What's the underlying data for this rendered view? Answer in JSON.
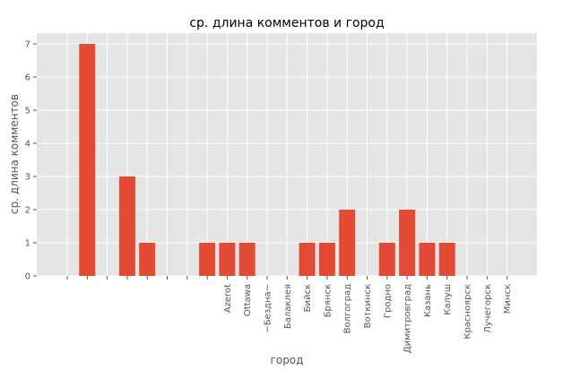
{
  "chart_data": {
    "type": "bar",
    "title": "ср. длина комментов и город",
    "xlabel": "город",
    "ylabel": "ср. длина комментов",
    "categories": [
      "",
      "",
      "",
      "",
      "",
      "",
      "",
      "",
      "Azerot",
      "Ottawa",
      "~Бездна~",
      "Балаклея",
      "Бийск",
      "Брянск",
      "Волгоград",
      "Воткинск",
      "Гродно",
      "Димитровград",
      "Казань",
      "Калуш",
      "Красноярск",
      "Лучегорск",
      "Минск"
    ],
    "values": [
      0,
      7,
      0,
      3,
      1,
      0,
      0,
      1,
      1,
      1,
      0,
      0,
      1,
      1,
      2,
      0,
      1,
      2,
      1,
      1,
      0,
      0,
      0
    ],
    "yticks": [
      "0",
      "1",
      "2",
      "3",
      "4",
      "5",
      "6",
      "7"
    ],
    "ylim": [
      0,
      7.35
    ],
    "grid": true,
    "colors": {
      "bar": "#E24A33",
      "plot_bg": "#E5E5E5",
      "grid": "#FFFFFF"
    }
  }
}
